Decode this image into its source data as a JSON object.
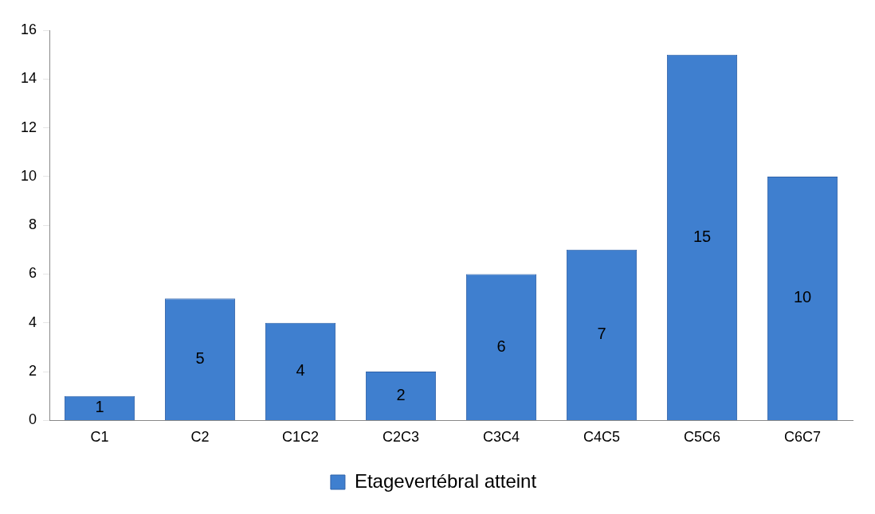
{
  "chart_data": {
    "type": "bar",
    "categories": [
      "C1",
      "C2",
      "C1C2",
      "C2C3",
      "C3C4",
      "C4C5",
      "C5C6",
      "C6C7"
    ],
    "series": [
      {
        "name": "Etagevertébral atteint",
        "color": "#3f7fcf",
        "values": [
          1,
          5,
          4,
          2,
          6,
          7,
          15,
          10
        ]
      }
    ],
    "ylim": [
      0,
      16
    ],
    "yticks": [
      0,
      2,
      4,
      6,
      8,
      10,
      12,
      14,
      16
    ],
    "grid": false,
    "legend": "bottom",
    "data_labels": true
  }
}
